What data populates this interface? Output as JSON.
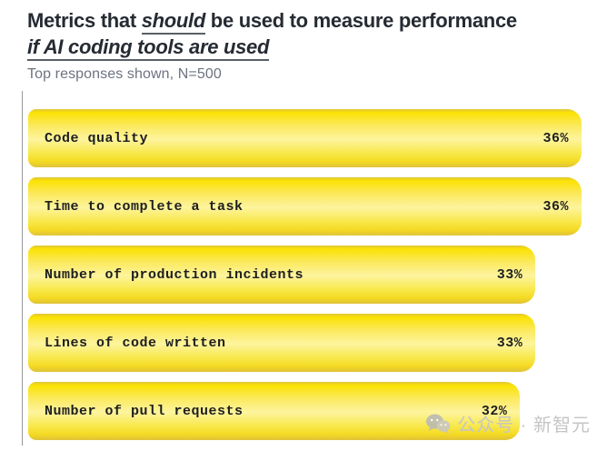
{
  "header": {
    "title_line1_pre": "Metrics that ",
    "title_line1_emph": "should",
    "title_line1_post": " be used to measure performance",
    "title_line2": "if AI coding tools are used",
    "subtitle": "Top responses shown, N=500"
  },
  "chart_data": {
    "type": "bar",
    "orientation": "horizontal",
    "title": "Metrics that should be used to measure performance if AI coding tools are used",
    "subtitle": "Top responses shown, N=500",
    "categories": [
      "Code quality",
      "Time to complete a task",
      "Number of production incidents",
      "Lines of code written",
      "Number of pull requests"
    ],
    "values": [
      36,
      36,
      33,
      33,
      32
    ],
    "value_labels": [
      "36%",
      "36%",
      "33%",
      "33%",
      "32%"
    ],
    "unit": "%",
    "xlim": [
      0,
      36
    ],
    "grid": false,
    "legend": false,
    "bar_color_top": "#fbe203",
    "bar_color_mid": "#fdf49e",
    "bar_color_bottom": "#dfc23a",
    "axis_color": "#97989c"
  },
  "watermark": {
    "icon": "wechat-icon",
    "text": "公众号 · 新智元"
  },
  "colors": {
    "title": "#262b33",
    "subtitle": "#6d7380",
    "bar_text": "#1e1e1e",
    "watermark": "#c5c5c7",
    "background": "#ffffff"
  }
}
